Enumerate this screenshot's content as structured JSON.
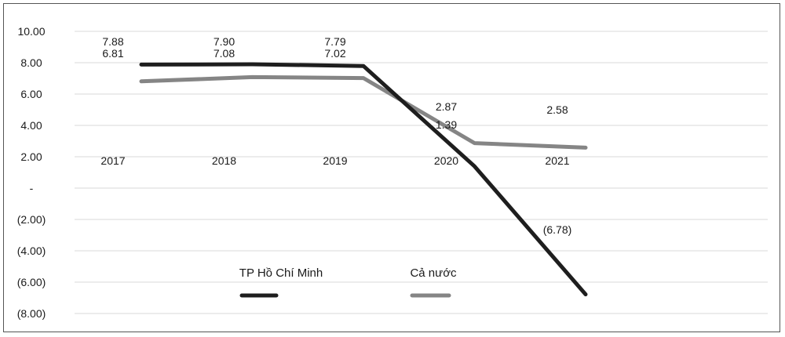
{
  "chart_data": {
    "type": "line",
    "title": "",
    "xlabel": "",
    "ylabel": "",
    "categories": [
      "2017",
      "2018",
      "2019",
      "2020",
      "2021"
    ],
    "ylim": [
      -8,
      10
    ],
    "yticks": [
      {
        "value": 10,
        "label": "10.00"
      },
      {
        "value": 8,
        "label": "8.00"
      },
      {
        "value": 6,
        "label": "6.00"
      },
      {
        "value": 4,
        "label": "4.00"
      },
      {
        "value": 2,
        "label": "2.00"
      },
      {
        "value": 0,
        "label": "-"
      },
      {
        "value": -2,
        "label": "(2.00)"
      },
      {
        "value": -4,
        "label": "(4.00)"
      },
      {
        "value": -6,
        "label": "(6.00)"
      },
      {
        "value": -8,
        "label": "(8.00)"
      }
    ],
    "grid": true,
    "legend_position": "bottom-center",
    "series": [
      {
        "name": "TP Hồ Chí Minh",
        "color": "#1e1e1e",
        "values": [
          7.88,
          7.9,
          7.79,
          1.39,
          -6.78
        ],
        "labels": [
          "7.88",
          "7.90",
          "7.79",
          "1.39",
          "(6.78)"
        ]
      },
      {
        "name": "Cả nước",
        "color": "#858585",
        "values": [
          6.81,
          7.08,
          7.02,
          2.87,
          2.58
        ],
        "labels": [
          "6.81",
          "7.08",
          "7.02",
          "2.87",
          "2.58"
        ]
      }
    ]
  }
}
